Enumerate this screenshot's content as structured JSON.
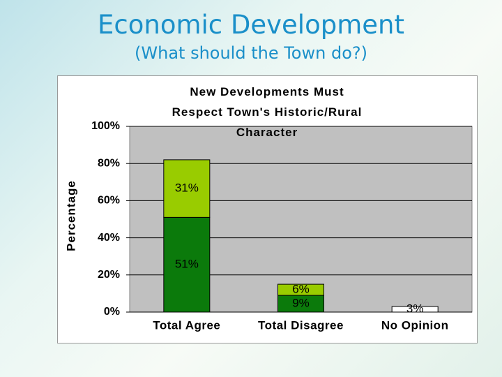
{
  "title": "Economic Development",
  "subtitle": "(What should the Town do?)",
  "chart_data": {
    "type": "stacked-bar",
    "title": "New Developments Must Respect Town's Historic/Rural Character",
    "y_label": "Percentage",
    "categories": [
      "Total Agree",
      "Total Disagree",
      "No Opinion"
    ],
    "series": [
      {
        "color": "#0b7a0b",
        "values": [
          51,
          9,
          null
        ],
        "value_labels": [
          "51%",
          "9%",
          null
        ]
      },
      {
        "color": "#99cc00",
        "values": [
          31,
          6,
          null
        ],
        "value_labels": [
          "31%",
          "6%",
          null
        ]
      },
      {
        "color": "#ffffff",
        "values": [
          null,
          null,
          3
        ],
        "value_labels": [
          null,
          null,
          "3%"
        ]
      }
    ],
    "ylim": [
      0,
      100
    ],
    "yticks": [
      {
        "value": 0,
        "label": "0%"
      },
      {
        "value": 20,
        "label": "20%"
      },
      {
        "value": 40,
        "label": "40%"
      },
      {
        "value": 60,
        "label": "60%"
      },
      {
        "value": 80,
        "label": "80%"
      },
      {
        "value": 100,
        "label": "100%"
      }
    ],
    "grid": true
  }
}
